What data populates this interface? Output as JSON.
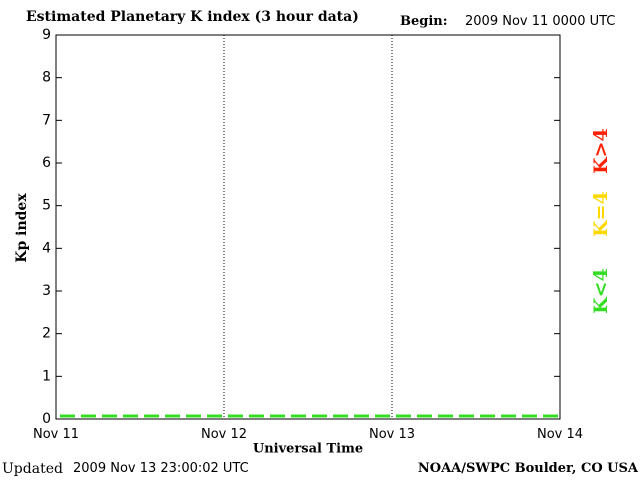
{
  "header": {
    "title": "Estimated Planetary K index (3 hour data)",
    "begin_label": "Begin:",
    "begin_value": "2009 Nov 11 0000 UTC"
  },
  "footer": {
    "updated_label": "Updated",
    "updated_value": "2009 Nov 13 23:00:02 UTC",
    "credit": "NOAA/SWPC Boulder, CO USA"
  },
  "legend": [
    {
      "label": "K>4",
      "color": "#ff2000"
    },
    {
      "label": "K=4",
      "color": "#ffd800"
    },
    {
      "label": "K<4",
      "color": "#33dd22"
    }
  ],
  "chart_data": {
    "type": "bar",
    "title": "Estimated Planetary K index (3 hour data)",
    "xlabel": "Universal Time",
    "ylabel": "Kp index",
    "ylim": [
      0,
      9
    ],
    "yticks": [
      "0",
      "1",
      "2",
      "3",
      "4",
      "5",
      "6",
      "7",
      "8",
      "9"
    ],
    "xticks": [
      "Nov 11",
      "Nov 12",
      "Nov 13",
      "Nov 14"
    ],
    "bar_interval_hours": 3,
    "values": [
      0,
      0,
      0,
      0,
      0,
      0,
      0,
      0,
      0,
      0,
      0,
      0,
      0,
      0,
      0,
      0,
      0,
      0,
      0,
      0,
      0,
      0,
      0,
      0
    ],
    "bar_color": "#33dd22",
    "grid": "dotted vertical lines at day boundaries"
  }
}
